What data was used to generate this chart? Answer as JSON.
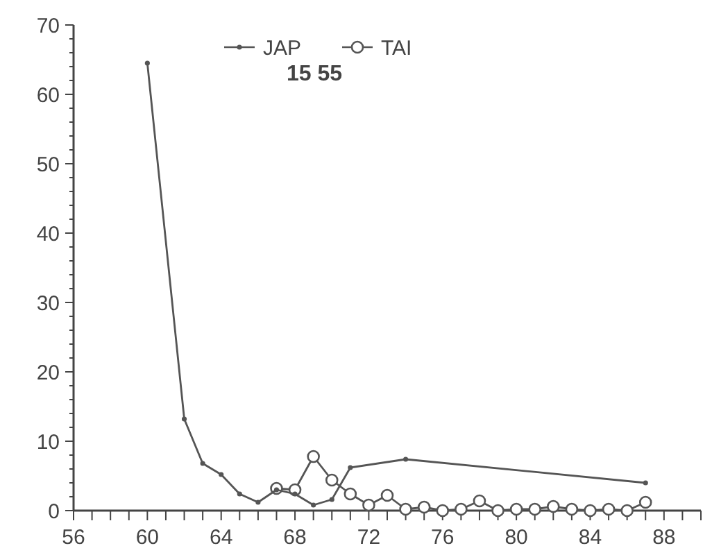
{
  "chart_data": {
    "type": "line",
    "title": "15 55",
    "xlim": [
      56,
      90
    ],
    "xticks": [
      {
        "value": 56,
        "label": "56"
      },
      {
        "value": 57,
        "label": null
      },
      {
        "value": 58,
        "label": null
      },
      {
        "value": 59,
        "label": null
      },
      {
        "value": 60,
        "label": "60"
      },
      {
        "value": 61,
        "label": null
      },
      {
        "value": 62,
        "label": null
      },
      {
        "value": 63,
        "label": null
      },
      {
        "value": 64,
        "label": "64"
      },
      {
        "value": 65,
        "label": null
      },
      {
        "value": 66,
        "label": null
      },
      {
        "value": 67,
        "label": null
      },
      {
        "value": 68,
        "label": "68"
      },
      {
        "value": 69,
        "label": null
      },
      {
        "value": 70,
        "label": null
      },
      {
        "value": 71,
        "label": null
      },
      {
        "value": 72,
        "label": "72"
      },
      {
        "value": 73,
        "label": null
      },
      {
        "value": 74,
        "label": null
      },
      {
        "value": 75,
        "label": null
      },
      {
        "value": 76,
        "label": "76"
      },
      {
        "value": 77,
        "label": null
      },
      {
        "value": 78,
        "label": null
      },
      {
        "value": 79,
        "label": null
      },
      {
        "value": 80,
        "label": "80"
      },
      {
        "value": 81,
        "label": null
      },
      {
        "value": 82,
        "label": null
      },
      {
        "value": 83,
        "label": null
      },
      {
        "value": 84,
        "label": "84"
      },
      {
        "value": 85,
        "label": null
      },
      {
        "value": 86,
        "label": null
      },
      {
        "value": 87,
        "label": null
      },
      {
        "value": 88,
        "label": "88"
      },
      {
        "value": 89,
        "label": null
      },
      {
        "value": 90,
        "label": null
      }
    ],
    "ylim": [
      0,
      70
    ],
    "yticks": [
      0,
      10,
      20,
      30,
      40,
      50,
      60,
      70
    ],
    "legend": "top",
    "grid": false,
    "series": [
      {
        "name": "JAP",
        "color": "#555555",
        "marker": "circle",
        "x": [
          60,
          62,
          63,
          64,
          65,
          66,
          67,
          68,
          69,
          70,
          71,
          74,
          87
        ],
        "values": [
          64.5,
          13.2,
          6.8,
          5.2,
          2.4,
          1.2,
          3,
          2.4,
          0.8,
          1.6,
          6.2,
          7.4,
          4
        ]
      },
      {
        "name": "TAI",
        "color": "#555555",
        "marker": "circle",
        "x": [
          67,
          68,
          69,
          70,
          71,
          72,
          73,
          74,
          75,
          76,
          77,
          78,
          79,
          80,
          81,
          82,
          83,
          84,
          85,
          86,
          87
        ],
        "values": [
          3.2,
          3,
          7.8,
          4.4,
          2.4,
          0.8,
          2.2,
          0.2,
          0.5,
          0,
          0.2,
          1.4,
          0,
          0.2,
          0.2,
          0.6,
          0.2,
          0,
          0.2,
          0,
          1.2
        ]
      }
    ]
  }
}
